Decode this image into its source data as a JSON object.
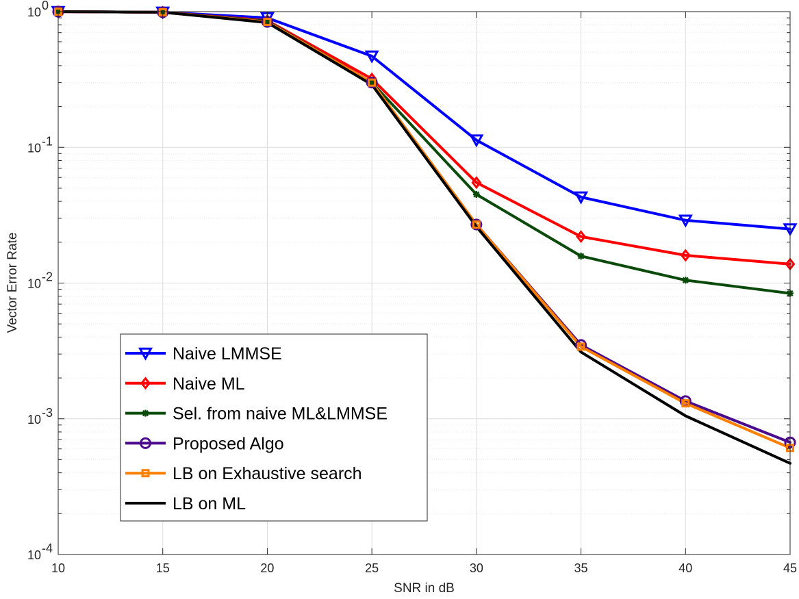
{
  "chart_data": {
    "type": "line",
    "xlabel": "SNR in dB",
    "ylabel": "Vector Error Rate",
    "x_scale": "linear",
    "y_scale": "log",
    "xlim": [
      10,
      45
    ],
    "ylim": [
      0.0001,
      1
    ],
    "x_ticks": [
      10,
      15,
      20,
      25,
      30,
      35,
      40,
      45
    ],
    "x_tick_labels": [
      "10",
      "15",
      "20",
      "25",
      "30",
      "35",
      "40",
      "45"
    ],
    "y_ticks": [
      {
        "value": 0.0001,
        "base": "10",
        "exp": "-4"
      },
      {
        "value": 0.001,
        "base": "10",
        "exp": "-3"
      },
      {
        "value": 0.01,
        "base": "10",
        "exp": "-2"
      },
      {
        "value": 0.1,
        "base": "10",
        "exp": "-1"
      },
      {
        "value": 1,
        "base": "10",
        "exp": "0"
      }
    ],
    "grid": true,
    "legend_position": "bottom-left",
    "series": [
      {
        "name": "Naive LMMSE",
        "color": "#0000ff",
        "marker": "triangle-down",
        "x": [
          10,
          15,
          20,
          25,
          30,
          35,
          40,
          45
        ],
        "y": [
          1.0,
          0.99,
          0.9,
          0.47,
          0.113,
          0.043,
          0.029,
          0.025
        ]
      },
      {
        "name": "Naive ML",
        "color": "#ff0000",
        "marker": "diamond",
        "x": [
          10,
          15,
          20,
          25,
          30,
          35,
          40,
          45
        ],
        "y": [
          1.0,
          0.99,
          0.86,
          0.32,
          0.055,
          0.022,
          0.016,
          0.0138
        ]
      },
      {
        "name": "Sel. from naive ML&LMMSE",
        "color": "#0a4a0a",
        "marker": "asterisk",
        "x": [
          10,
          15,
          20,
          25,
          30,
          35,
          40,
          45
        ],
        "y": [
          1.0,
          0.99,
          0.85,
          0.3,
          0.045,
          0.0158,
          0.0105,
          0.0084
        ]
      },
      {
        "name": "Proposed Algo",
        "color": "#4b0a8c",
        "marker": "circle",
        "x": [
          10,
          15,
          20,
          25,
          30,
          35,
          40,
          45
        ],
        "y": [
          1.0,
          0.99,
          0.84,
          0.3,
          0.027,
          0.0035,
          0.00135,
          0.00067
        ]
      },
      {
        "name": "LB on Exhaustive search",
        "color": "#ff8000",
        "marker": "square",
        "x": [
          10,
          15,
          20,
          25,
          30,
          35,
          40,
          45
        ],
        "y": [
          1.0,
          0.99,
          0.84,
          0.3,
          0.027,
          0.0034,
          0.0013,
          0.00061
        ]
      },
      {
        "name": "LB on ML",
        "color": "#000000",
        "marker": "none",
        "x": [
          10,
          15,
          20,
          25,
          30,
          35,
          40,
          45
        ],
        "y": [
          1.0,
          0.99,
          0.83,
          0.29,
          0.026,
          0.0031,
          0.00105,
          0.00047
        ]
      }
    ]
  }
}
